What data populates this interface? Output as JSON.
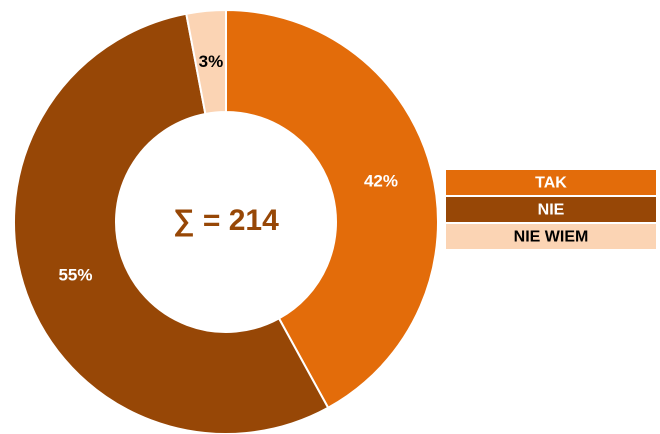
{
  "chart_data": {
    "type": "donut",
    "center_label": "∑ = 214",
    "categories": [
      "TAK",
      "NIE",
      "NIE WIEM"
    ],
    "values": [
      42,
      55,
      3
    ],
    "value_labels": [
      "42%",
      "55%",
      "3%"
    ],
    "colors": [
      "#e36c0a",
      "#974706",
      "#fbd4b4"
    ],
    "legend": "right"
  }
}
